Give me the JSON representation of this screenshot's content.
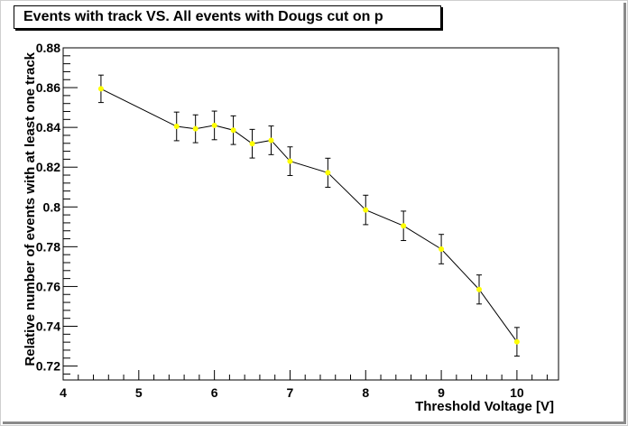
{
  "chart_data": {
    "type": "scatter",
    "title": "Events with track VS. All events with Dougs cut on p",
    "xlabel": "Threshold Voltage [V]",
    "ylabel": "Relative number of events with at least one track",
    "xlim": [
      4,
      10.55
    ],
    "ylim": [
      0.713,
      0.88
    ],
    "x_ticks": [
      "4",
      "5",
      "6",
      "7",
      "8",
      "9",
      "10"
    ],
    "y_ticks": [
      "0.72",
      "0.74",
      "0.76",
      "0.78",
      "0.8",
      "0.82",
      "0.84",
      "0.86",
      "0.88"
    ],
    "marker_color": "#ffff00",
    "line_color": "#000000",
    "grid": false,
    "series": [
      {
        "x": [
          4.5,
          5.5,
          5.75,
          6.0,
          6.25,
          6.5,
          6.75,
          7.0,
          7.5,
          8.0,
          8.5,
          9.0,
          9.5,
          10.0
        ],
        "y": [
          0.8594,
          0.8405,
          0.8393,
          0.841,
          0.8386,
          0.8318,
          0.8335,
          0.823,
          0.8172,
          0.7985,
          0.7905,
          0.7788,
          0.7585,
          0.7322
        ],
        "err": [
          0.0069,
          0.0072,
          0.007,
          0.0072,
          0.0072,
          0.0072,
          0.0072,
          0.0072,
          0.0073,
          0.0074,
          0.0074,
          0.0074,
          0.0073,
          0.0072
        ]
      }
    ]
  }
}
